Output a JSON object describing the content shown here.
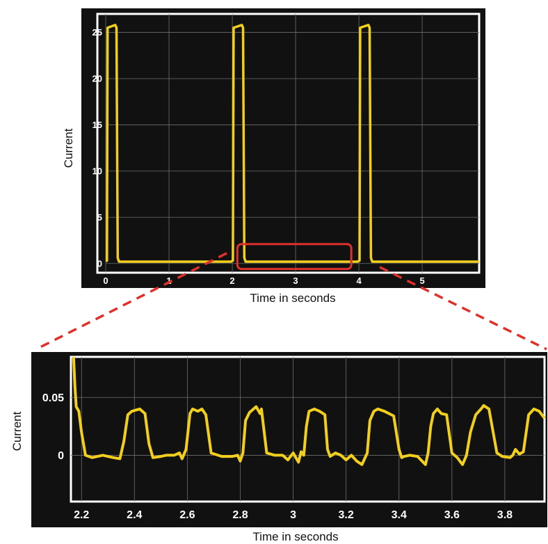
{
  "chart_data": [
    {
      "type": "line",
      "xlabel": "Time in seconds",
      "ylabel": "Current",
      "xlim": [
        0,
        5.9
      ],
      "ylim": [
        -1,
        27
      ],
      "xticks": [
        0,
        1,
        2,
        3,
        4,
        5
      ],
      "yticks": [
        0,
        5,
        10,
        15,
        20,
        25
      ],
      "xtick_labels": [
        "0",
        "1",
        "2",
        "3",
        "4",
        "5"
      ],
      "ytick_labels": [
        "0",
        "5",
        "10",
        "15",
        "20",
        "25"
      ],
      "grid": true,
      "background": "#111111",
      "series_color": "#f2cf1d",
      "highlight_color": "#e0302a",
      "highlight_region": {
        "x": [
          2.08,
          3.88
        ],
        "y": [
          -0.6,
          2.1
        ]
      },
      "series": [
        {
          "x": [
            0.0,
            0.02,
            0.03,
            0.15,
            0.17,
            0.19,
            0.21,
            1.98,
            2.01,
            2.02,
            2.15,
            2.17,
            2.19,
            2.21,
            3.98,
            4.01,
            4.02,
            4.15,
            4.17,
            4.19,
            4.21,
            5.9
          ],
          "values": [
            0.3,
            0.3,
            25.5,
            25.8,
            25.5,
            0.6,
            0.2,
            0.2,
            0.3,
            25.5,
            25.8,
            25.5,
            0.6,
            0.2,
            0.2,
            0.3,
            25.5,
            25.8,
            25.5,
            0.6,
            0.2,
            0.2
          ]
        }
      ]
    },
    {
      "type": "line",
      "xlabel": "Time in seconds",
      "ylabel": "Current",
      "xlim": [
        2.16,
        3.95
      ],
      "ylim": [
        -0.04,
        0.085
      ],
      "xticks": [
        2.2,
        2.4,
        2.6,
        2.8,
        3.0,
        3.2,
        3.4,
        3.6,
        3.8
      ],
      "yticks": [
        0,
        0.05
      ],
      "xtick_labels": [
        "2.2",
        "2.4",
        "2.6",
        "2.8",
        "3",
        "3.2",
        "3.4",
        "3.6",
        "3.8"
      ],
      "ytick_labels": [
        "0",
        "0.05"
      ],
      "grid": true,
      "background": "#111111",
      "series_color": "#f2cf1d",
      "series": [
        {
          "x": [
            2.17,
            2.175,
            2.18,
            2.19,
            2.2,
            2.215,
            2.24,
            2.28,
            2.32,
            2.345,
            2.36,
            2.375,
            2.39,
            2.42,
            2.44,
            2.455,
            2.47,
            2.5,
            2.52,
            2.55,
            2.57,
            2.58,
            2.595,
            2.61,
            2.62,
            2.64,
            2.655,
            2.67,
            2.69,
            2.73,
            2.77,
            2.79,
            2.8,
            2.81,
            2.82,
            2.835,
            2.86,
            2.875,
            2.88,
            2.9,
            2.93,
            2.96,
            2.98,
            3.0,
            3.02,
            3.03,
            3.04,
            3.05,
            3.06,
            3.08,
            3.1,
            3.12,
            3.13,
            3.14,
            3.16,
            3.18,
            3.2,
            3.22,
            3.24,
            3.26,
            3.28,
            3.29,
            3.305,
            3.32,
            3.345,
            3.38,
            3.4,
            3.41,
            3.42,
            3.44,
            3.47,
            3.5,
            3.51,
            3.52,
            3.53,
            3.545,
            3.56,
            3.58,
            3.6,
            3.62,
            3.64,
            3.655,
            3.67,
            3.69,
            3.71,
            3.72,
            3.74,
            3.77,
            3.79,
            3.82,
            3.83,
            3.84,
            3.855,
            3.87,
            3.89,
            3.91,
            3.93,
            3.95
          ],
          "values": [
            0.085,
            0.06,
            0.042,
            0.038,
            0.02,
            0.0,
            -0.002,
            0.0,
            -0.002,
            -0.003,
            0.012,
            0.035,
            0.038,
            0.04,
            0.036,
            0.01,
            -0.002,
            -0.001,
            0.0,
            0.0,
            0.002,
            -0.003,
            0.005,
            0.036,
            0.04,
            0.038,
            0.04,
            0.035,
            0.002,
            -0.001,
            -0.001,
            0.0,
            -0.005,
            0.002,
            0.03,
            0.037,
            0.042,
            0.036,
            0.04,
            0.002,
            0.0,
            0.0,
            -0.004,
            0.002,
            -0.006,
            0.003,
            0.0,
            0.025,
            0.038,
            0.04,
            0.038,
            0.035,
            0.005,
            -0.001,
            0.002,
            0.0,
            -0.004,
            0.0,
            -0.005,
            -0.008,
            0.002,
            0.03,
            0.038,
            0.04,
            0.038,
            0.034,
            0.005,
            -0.002,
            -0.001,
            0.0,
            -0.001,
            -0.008,
            0.002,
            0.025,
            0.036,
            0.04,
            0.036,
            0.035,
            0.002,
            -0.002,
            -0.008,
            0.0,
            0.02,
            0.035,
            0.04,
            0.043,
            0.04,
            0.002,
            -0.001,
            -0.002,
            0.0,
            0.005,
            0.001,
            0.003,
            0.035,
            0.04,
            0.038,
            0.032
          ]
        }
      ]
    }
  ]
}
